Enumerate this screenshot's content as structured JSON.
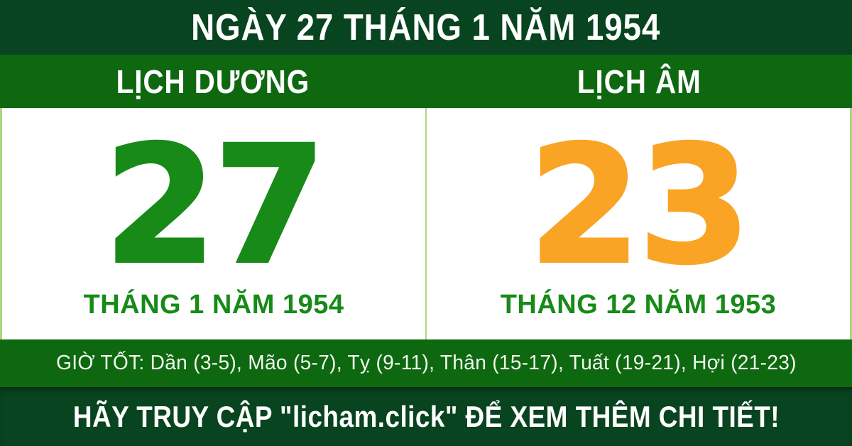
{
  "header": {
    "title": "NGÀY 27 THÁNG 1 NĂM 1954"
  },
  "columns": {
    "solar": {
      "label": "LỊCH DƯƠNG",
      "day": "27",
      "month_line": "THÁNG 1 NĂM 1954",
      "day_color": "#178a17"
    },
    "lunar": {
      "label": "LỊCH ÂM",
      "day": "23",
      "month_line": "THÁNG 12 NĂM 1953",
      "day_color": "#f9a425"
    }
  },
  "good_hours": {
    "text": "GIỜ TỐT: Dần (3-5), Mão (5-7), Tỵ (9-11), Thân (15-17), Tuất (19-21), Hợi (21-23)"
  },
  "footer": {
    "text": "HÃY TRUY CẬP \"licham.click\" ĐỂ XEM THÊM CHI TIẾT!"
  },
  "colors": {
    "dark_green": "#07441f",
    "medium_green": "#0e6810",
    "solar_day_green": "#178a17",
    "lunar_day_orange": "#f9a425",
    "light_green_divider": "#acd57f",
    "panel_white": "#ffffff"
  }
}
